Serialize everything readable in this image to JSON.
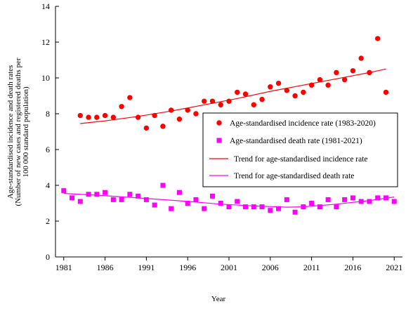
{
  "chart_data": {
    "type": "scatter",
    "title": "",
    "xlabel": "Year",
    "ylabel_lines": [
      "Age-standardised incidence and death rates",
      "(Number of new cases and registered deaths per",
      "100 000 standard population)"
    ],
    "xlim": [
      1980,
      2022
    ],
    "ylim": [
      0,
      14
    ],
    "x_ticks": [
      1981,
      1986,
      1991,
      1996,
      2001,
      2006,
      2011,
      2016,
      2021
    ],
    "y_ticks": [
      0,
      2,
      4,
      6,
      8,
      10,
      12,
      14
    ],
    "grid": false,
    "legend_position": "right",
    "series": [
      {
        "name": "Age-standardised incidence rate (1983-2020)",
        "kind": "points",
        "marker": "circle",
        "color": "#ff0000",
        "x": [
          1983,
          1984,
          1985,
          1986,
          1987,
          1988,
          1989,
          1990,
          1991,
          1992,
          1993,
          1994,
          1995,
          1996,
          1997,
          1998,
          1999,
          2000,
          2001,
          2002,
          2003,
          2004,
          2005,
          2006,
          2007,
          2008,
          2009,
          2010,
          2011,
          2012,
          2013,
          2014,
          2015,
          2016,
          2017,
          2018,
          2019,
          2020
        ],
        "y": [
          7.9,
          7.8,
          7.8,
          7.9,
          7.8,
          8.4,
          8.9,
          7.8,
          7.2,
          7.9,
          7.3,
          8.2,
          7.7,
          8.2,
          8.0,
          8.7,
          8.7,
          8.5,
          8.7,
          9.2,
          9.1,
          8.5,
          8.8,
          9.5,
          9.7,
          9.3,
          9.0,
          9.2,
          9.6,
          9.9,
          9.6,
          10.3,
          9.9,
          10.4,
          11.1,
          10.3,
          12.2,
          9.2
        ]
      },
      {
        "name": "Age-standardised death rate (1981-2021)",
        "kind": "points",
        "marker": "square",
        "color": "#ff00ff",
        "x": [
          1981,
          1982,
          1983,
          1984,
          1985,
          1986,
          1987,
          1988,
          1989,
          1990,
          1991,
          1992,
          1993,
          1994,
          1995,
          1996,
          1997,
          1998,
          1999,
          2000,
          2001,
          2002,
          2003,
          2004,
          2005,
          2006,
          2007,
          2008,
          2009,
          2010,
          2011,
          2012,
          2013,
          2014,
          2015,
          2016,
          2017,
          2018,
          2019,
          2020,
          2021
        ],
        "y": [
          3.7,
          3.3,
          3.1,
          3.5,
          3.5,
          3.6,
          3.2,
          3.2,
          3.5,
          3.4,
          3.2,
          2.9,
          4.0,
          2.7,
          3.6,
          3.0,
          3.2,
          2.7,
          3.4,
          3.0,
          2.8,
          3.1,
          2.8,
          2.8,
          2.8,
          2.6,
          2.7,
          3.2,
          2.5,
          2.8,
          3.0,
          2.8,
          3.2,
          2.8,
          3.2,
          3.3,
          3.1,
          3.1,
          3.3,
          3.3,
          3.1
        ]
      },
      {
        "name": "Trend for age-standardised incidence rate",
        "kind": "line",
        "color": "#ff0000",
        "x": [
          1983,
          1986,
          1990,
          1994,
          1998,
          2002,
          2006,
          2010,
          2014,
          2018,
          2020
        ],
        "y": [
          7.45,
          7.6,
          7.85,
          8.15,
          8.5,
          8.85,
          9.25,
          9.6,
          9.95,
          10.3,
          10.5
        ]
      },
      {
        "name": "Trend for age-standardised death rate",
        "kind": "line",
        "color": "#ff00ff",
        "x": [
          1981,
          1985,
          1990,
          1993,
          1996,
          2000,
          2004,
          2008,
          2010,
          2014,
          2018,
          2021
        ],
        "y": [
          3.55,
          3.45,
          3.3,
          3.2,
          3.1,
          2.95,
          2.85,
          2.78,
          2.8,
          2.95,
          3.15,
          3.35
        ]
      }
    ]
  }
}
